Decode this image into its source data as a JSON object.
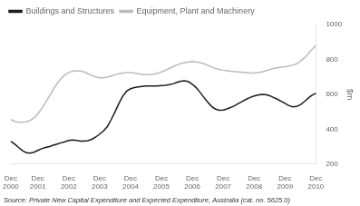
{
  "chart_data": {
    "type": "line",
    "y_label": "$m",
    "annotations": [
      "Source: Private New Capital Expenditure and Expected Expenditure, Australia (cat. no. 5625.0)"
    ],
    "categories": [
      "Dec\n2000",
      null,
      null,
      null,
      null,
      null,
      null,
      "Dec\n2001",
      null,
      null,
      null,
      null,
      null,
      null,
      null,
      "Dec\n2002",
      null,
      null,
      null,
      null,
      null,
      null,
      null,
      "Dec\n2003",
      null,
      null,
      null,
      null,
      null,
      null,
      null,
      "Dec\n2004",
      null,
      null,
      null,
      null,
      null,
      null,
      null,
      "Dec\n2005",
      null,
      null,
      null,
      null,
      null,
      null,
      null,
      "Dec\n2006",
      null,
      null,
      null,
      null,
      null,
      null,
      null,
      "Dec\n2007",
      null,
      null,
      null,
      null,
      null,
      null,
      null,
      "Dec\n2008",
      null,
      null,
      null,
      null,
      null,
      null,
      null,
      "Dec\n2009",
      null,
      null,
      null,
      null,
      null,
      null,
      null,
      "Dec\n2010"
    ],
    "series": [
      {
        "name": "Buildings and Structures",
        "color": "#1a1a1a",
        "values": [
          330,
          315,
          295,
          278,
          265,
          263,
          268,
          278,
          288,
          295,
          300,
          308,
          315,
          322,
          328,
          335,
          338,
          335,
          332,
          332,
          334,
          342,
          355,
          372,
          390,
          415,
          455,
          500,
          548,
          590,
          618,
          632,
          638,
          642,
          645,
          648,
          648,
          648,
          648,
          650,
          652,
          655,
          660,
          668,
          675,
          678,
          672,
          658,
          638,
          612,
          582,
          555,
          530,
          515,
          508,
          510,
          516,
          525,
          535,
          548,
          560,
          572,
          582,
          590,
          596,
          600,
          598,
          592,
          582,
          572,
          560,
          548,
          535,
          528,
          530,
          540,
          558,
          578,
          595,
          605
        ]
      },
      {
        "name": "Equipment, Plant and Machinery",
        "color": "#bbbbbb",
        "values": [
          455,
          445,
          440,
          440,
          442,
          450,
          465,
          488,
          518,
          552,
          590,
          628,
          662,
          690,
          712,
          725,
          732,
          735,
          733,
          728,
          718,
          708,
          700,
          695,
          695,
          698,
          705,
          712,
          718,
          722,
          724,
          724,
          722,
          718,
          714,
          712,
          712,
          715,
          720,
          728,
          738,
          748,
          758,
          768,
          776,
          782,
          786,
          788,
          786,
          782,
          775,
          766,
          756,
          748,
          742,
          738,
          735,
          732,
          730,
          728,
          726,
          724,
          722,
          722,
          724,
          728,
          735,
          742,
          748,
          752,
          755,
          758,
          762,
          768,
          775,
          790,
          808,
          832,
          858,
          880
        ]
      }
    ],
    "ylim": [
      200,
      1000
    ],
    "yticks": [
      200,
      400,
      600,
      800,
      1000
    ],
    "grid": false,
    "legend": "upper left"
  }
}
